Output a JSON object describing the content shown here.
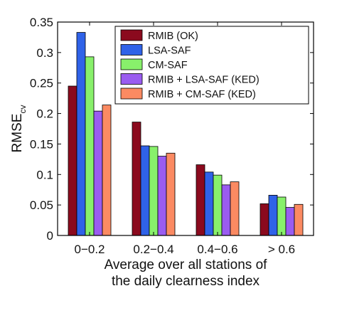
{
  "chart_data": {
    "type": "bar",
    "categories": [
      "0−0.2",
      "0.2−0.4",
      "0.4−0.6",
      "> 0.6"
    ],
    "series": [
      {
        "name": "RMIB (OK)",
        "color": "#8b0a1e",
        "values": [
          0.245,
          0.186,
          0.116,
          0.052
        ]
      },
      {
        "name": "LSA-SAF",
        "color": "#2f62e8",
        "values": [
          0.333,
          0.147,
          0.104,
          0.066
        ]
      },
      {
        "name": "CM-SAF",
        "color": "#88f06b",
        "values": [
          0.293,
          0.146,
          0.099,
          0.063
        ]
      },
      {
        "name": "RMIB + LSA-SAF (KED)",
        "color": "#9a5cf0",
        "values": [
          0.204,
          0.13,
          0.083,
          0.046
        ]
      },
      {
        "name": "RMIB + CM-SAF (KED)",
        "color": "#fb8a62",
        "values": [
          0.214,
          0.135,
          0.088,
          0.051
        ]
      }
    ],
    "ylabel": "RMSE",
    "ylabel_subscript": "cv",
    "xlabel_line1": "Average over all stations of",
    "xlabel_line2": "the daily clearness index",
    "ylim": [
      0,
      0.35
    ],
    "yticks": [
      "0",
      "0.05",
      "0.1",
      "0.15",
      "0.2",
      "0.25",
      "0.3",
      "0.35"
    ],
    "legend_position": "top-right",
    "grid": false
  }
}
